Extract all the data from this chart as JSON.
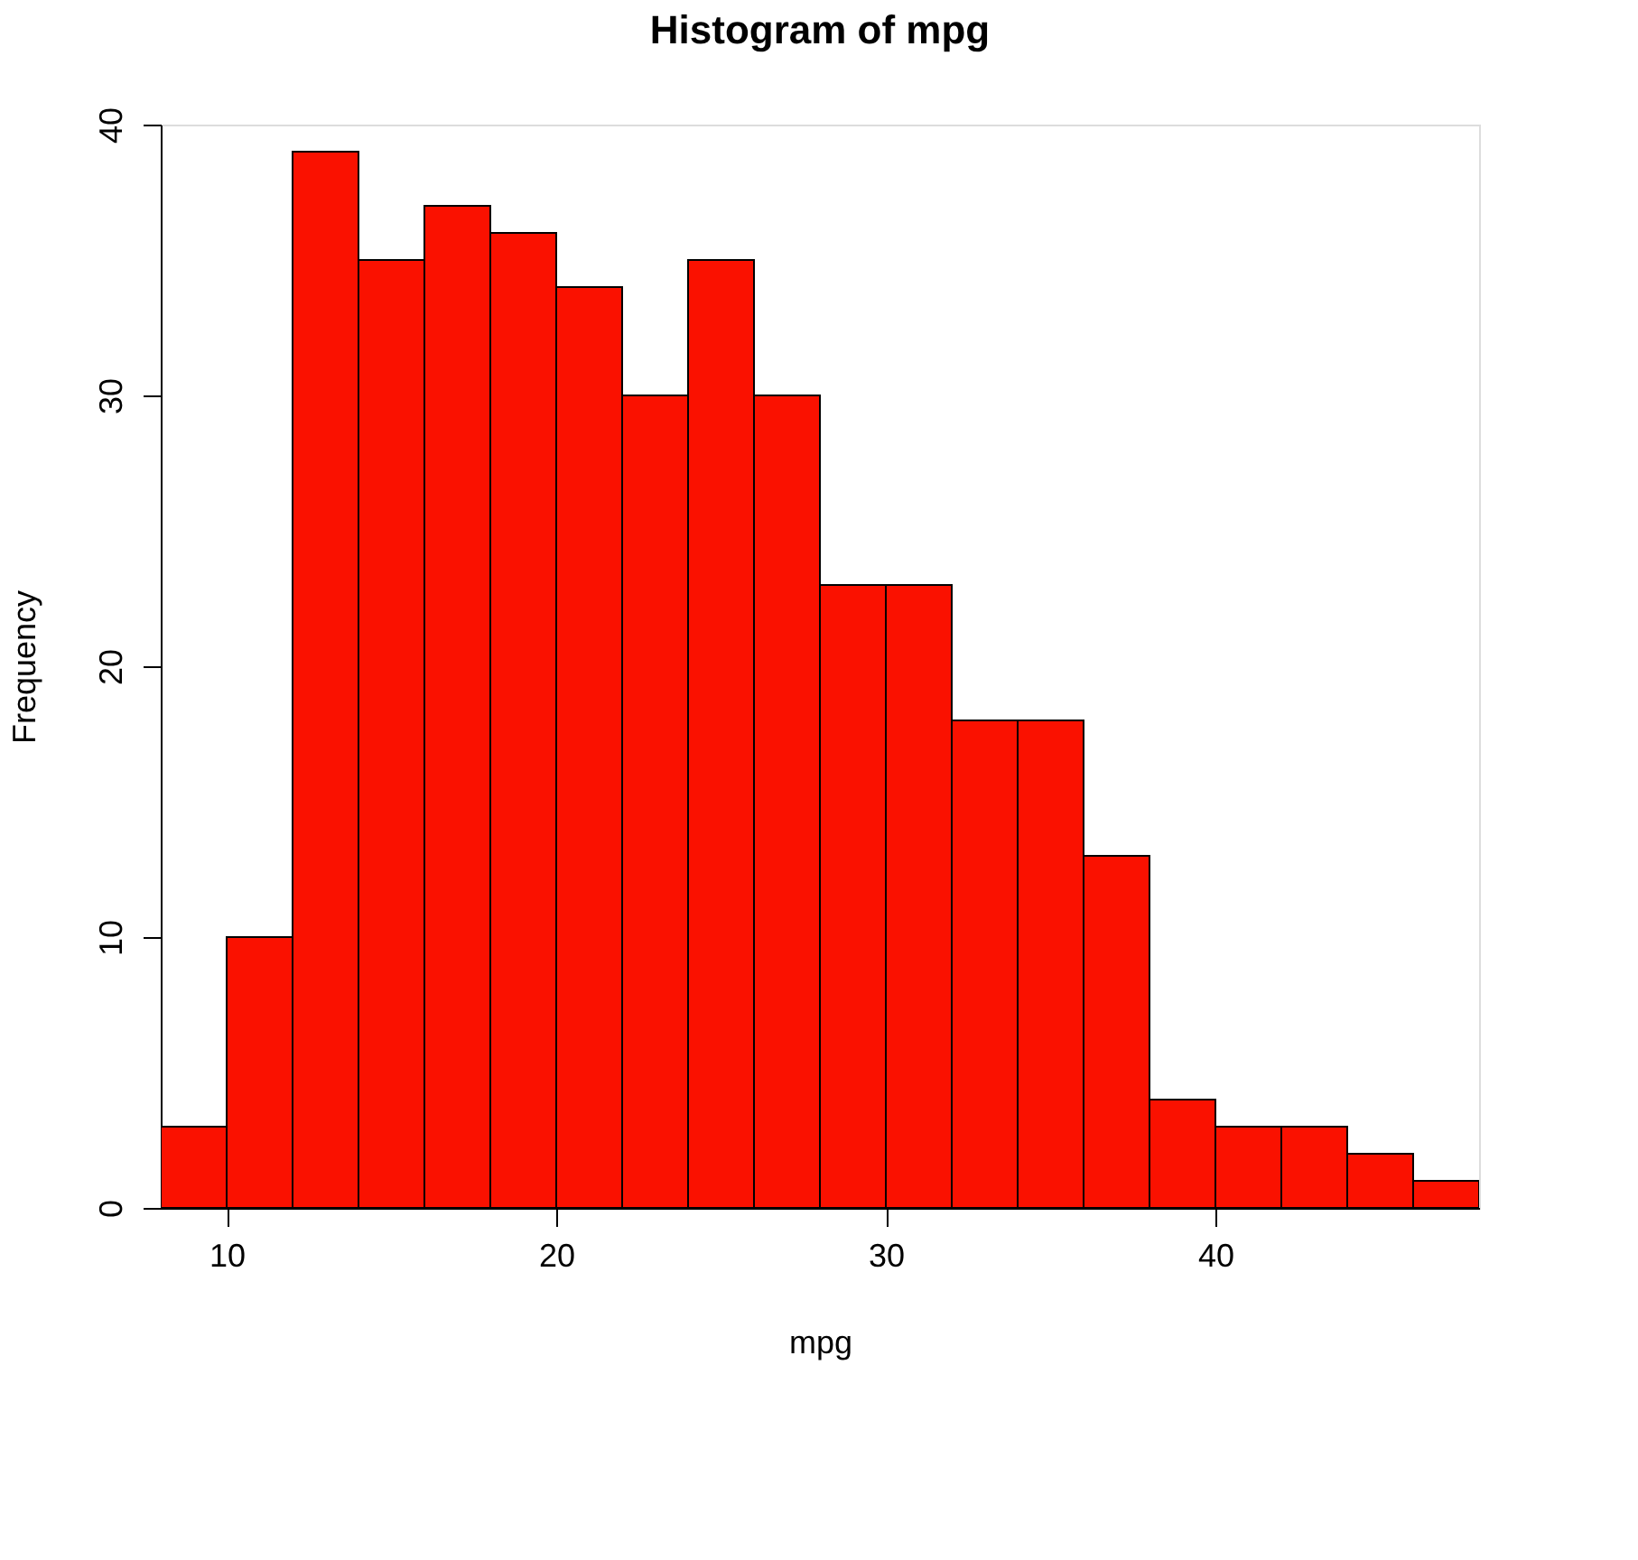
{
  "chart_data": {
    "type": "histogram",
    "title": "Histogram of mpg",
    "xlabel": "mpg",
    "ylabel": "Frequency",
    "bins": [
      8,
      10,
      12,
      14,
      16,
      18,
      20,
      22,
      24,
      26,
      28,
      30,
      32,
      34,
      36,
      38,
      40,
      42,
      44,
      46,
      48
    ],
    "values": [
      3,
      10,
      39,
      35,
      37,
      36,
      34,
      30,
      35,
      30,
      23,
      23,
      18,
      18,
      13,
      4,
      3,
      3,
      2,
      1
    ],
    "color": "#fa1100",
    "xlim": [
      8,
      48
    ],
    "xticks": [
      10,
      20,
      30,
      40
    ],
    "ylim": [
      0,
      40
    ],
    "yticks": [
      0,
      10,
      20,
      30,
      40
    ],
    "grid": false
  }
}
